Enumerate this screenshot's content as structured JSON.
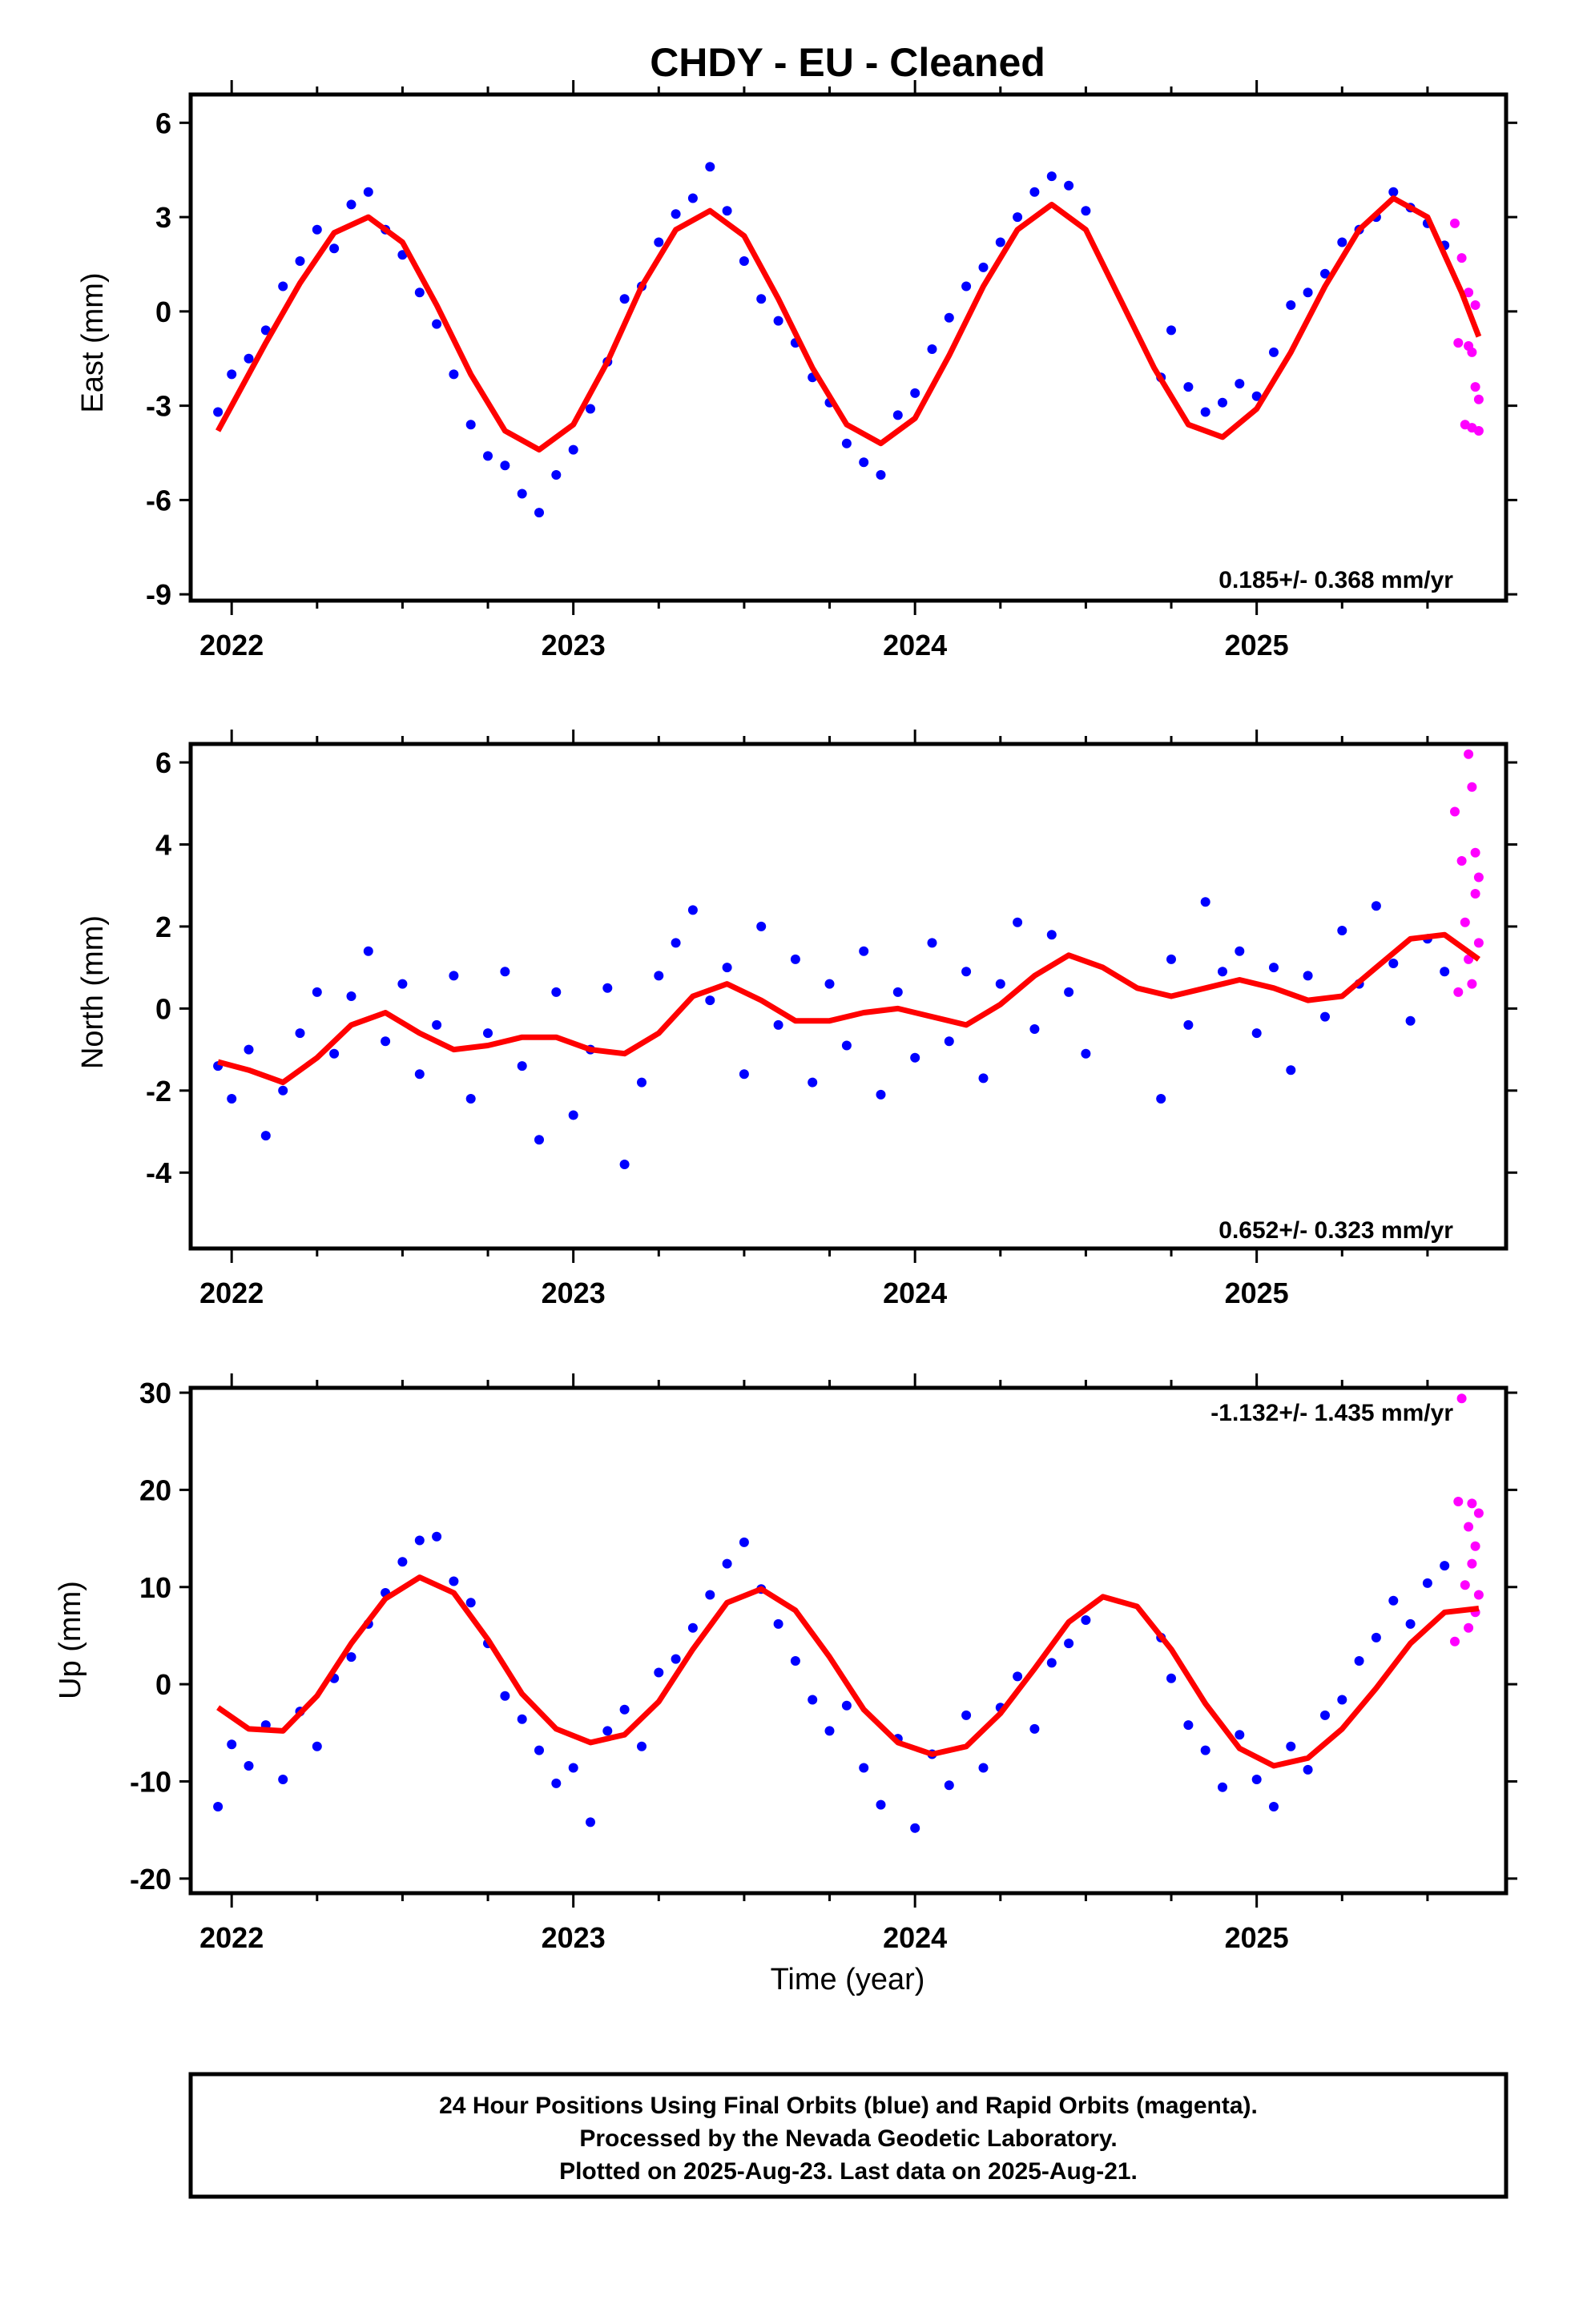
{
  "page": {
    "title": "CHDY  - EU - Cleaned",
    "xlabel": "Time (year)",
    "footer": [
      "24 Hour Positions Using Final Orbits (blue) and Rapid Orbits (magenta).",
      "Processed by the Nevada Geodetic Laboratory.",
      "Plotted on 2025-Aug-23. Last data on 2025-Aug-21."
    ],
    "colors": {
      "final": "#0000ff",
      "rapid": "#ff00ff",
      "model": "#ff0000",
      "axes": "#000000"
    }
  },
  "chart_data": [
    {
      "type": "scatter",
      "ylabel": "East (mm)",
      "rate": "0.185+/- 0.368 mm/yr",
      "xlim": [
        2021.88,
        2025.73
      ],
      "ylim": [
        -9.2,
        6.9
      ],
      "xticks": [
        2022,
        2023,
        2024,
        2025
      ],
      "yticks": [
        -9,
        -6,
        -3,
        0,
        3,
        6
      ],
      "series": [
        {
          "role": "final",
          "x": [
            2021.96,
            2022.0,
            2022.05,
            2022.1,
            2022.15,
            2022.2,
            2022.25,
            2022.3,
            2022.35,
            2022.4,
            2022.45,
            2022.5,
            2022.55,
            2022.6,
            2022.65,
            2022.7,
            2022.75,
            2022.8,
            2022.85,
            2022.9,
            2022.95,
            2023.0,
            2023.05,
            2023.1,
            2023.15,
            2023.2,
            2023.25,
            2023.3,
            2023.35,
            2023.4,
            2023.45,
            2023.5,
            2023.55,
            2023.6,
            2023.65,
            2023.7,
            2023.75,
            2023.8,
            2023.85,
            2023.9,
            2023.95,
            2024.0,
            2024.05,
            2024.1,
            2024.15,
            2024.2,
            2024.25,
            2024.3,
            2024.35,
            2024.4,
            2024.45,
            2024.5,
            2024.72,
            2024.75,
            2024.8,
            2024.85,
            2024.9,
            2024.95,
            2025.0,
            2025.05,
            2025.1,
            2025.15,
            2025.2,
            2025.25,
            2025.3,
            2025.35,
            2025.4,
            2025.45,
            2025.5,
            2025.55
          ],
          "y": [
            -3.2,
            -2.0,
            -1.5,
            -0.6,
            0.8,
            1.6,
            2.6,
            2.0,
            3.4,
            3.8,
            2.6,
            1.8,
            0.6,
            -0.4,
            -2.0,
            -3.6,
            -4.6,
            -4.9,
            -5.8,
            -6.4,
            -5.2,
            -4.4,
            -3.1,
            -1.6,
            0.4,
            0.8,
            2.2,
            3.1,
            3.6,
            4.6,
            3.2,
            1.6,
            0.4,
            -0.3,
            -1.0,
            -2.1,
            -2.9,
            -4.2,
            -4.8,
            -5.2,
            -3.3,
            -2.6,
            -1.2,
            -0.2,
            0.8,
            1.4,
            2.2,
            3.0,
            3.8,
            4.3,
            4.0,
            3.2,
            -2.1,
            -0.6,
            -2.4,
            -3.2,
            -2.9,
            -2.3,
            -2.7,
            -1.3,
            0.2,
            0.6,
            1.2,
            2.2,
            2.6,
            3.0,
            3.8,
            3.3,
            2.8,
            2.1
          ]
        },
        {
          "role": "rapid",
          "x": [
            2025.58,
            2025.59,
            2025.6,
            2025.61,
            2025.62,
            2025.62,
            2025.63,
            2025.63,
            2025.64,
            2025.64,
            2025.65,
            2025.65
          ],
          "y": [
            2.8,
            -1.0,
            1.7,
            -3.6,
            0.6,
            -1.1,
            -3.7,
            -1.3,
            0.2,
            -2.4,
            -3.8,
            -2.8
          ]
        },
        {
          "role": "model",
          "x": [
            2021.96,
            2022.0,
            2022.1,
            2022.2,
            2022.3,
            2022.4,
            2022.5,
            2022.6,
            2022.7,
            2022.8,
            2022.9,
            2023.0,
            2023.1,
            2023.2,
            2023.3,
            2023.4,
            2023.5,
            2023.6,
            2023.7,
            2023.8,
            2023.9,
            2024.0,
            2024.1,
            2024.2,
            2024.3,
            2024.4,
            2024.5,
            2024.6,
            2024.7,
            2024.8,
            2024.9,
            2025.0,
            2025.1,
            2025.2,
            2025.3,
            2025.4,
            2025.5,
            2025.6,
            2025.65
          ],
          "y": [
            -3.8,
            -3.0,
            -1.0,
            0.9,
            2.5,
            3.0,
            2.2,
            0.2,
            -2.0,
            -3.8,
            -4.4,
            -3.6,
            -1.6,
            0.8,
            2.6,
            3.2,
            2.4,
            0.4,
            -1.8,
            -3.6,
            -4.2,
            -3.4,
            -1.4,
            0.8,
            2.6,
            3.4,
            2.6,
            0.4,
            -1.8,
            -3.6,
            -4.0,
            -3.1,
            -1.3,
            0.8,
            2.6,
            3.6,
            3.0,
            0.6,
            -0.8
          ]
        }
      ]
    },
    {
      "type": "scatter",
      "ylabel": "North (mm)",
      "rate": "0.652+/- 0.323 mm/yr",
      "xlim": [
        2021.88,
        2025.73
      ],
      "ylim": [
        -5.85,
        6.45
      ],
      "xticks": [
        2022,
        2023,
        2024,
        2025
      ],
      "yticks": [
        -4,
        -2,
        0,
        2,
        4,
        6
      ],
      "series": [
        {
          "role": "final",
          "x": [
            2021.96,
            2022.0,
            2022.05,
            2022.1,
            2022.15,
            2022.2,
            2022.25,
            2022.3,
            2022.35,
            2022.4,
            2022.45,
            2022.5,
            2022.55,
            2022.6,
            2022.65,
            2022.7,
            2022.75,
            2022.8,
            2022.85,
            2022.9,
            2022.95,
            2023.0,
            2023.05,
            2023.1,
            2023.15,
            2023.2,
            2023.25,
            2023.3,
            2023.35,
            2023.4,
            2023.45,
            2023.5,
            2023.55,
            2023.6,
            2023.65,
            2023.7,
            2023.75,
            2023.8,
            2023.85,
            2023.9,
            2023.95,
            2024.0,
            2024.05,
            2024.1,
            2024.15,
            2024.2,
            2024.25,
            2024.3,
            2024.35,
            2024.4,
            2024.45,
            2024.5,
            2024.72,
            2024.75,
            2024.8,
            2024.85,
            2024.9,
            2024.95,
            2025.0,
            2025.05,
            2025.1,
            2025.15,
            2025.2,
            2025.25,
            2025.3,
            2025.35,
            2025.4,
            2025.45,
            2025.5,
            2025.55
          ],
          "y": [
            -1.4,
            -2.2,
            -1.0,
            -3.1,
            -2.0,
            -0.6,
            0.4,
            -1.1,
            0.3,
            1.4,
            -0.8,
            0.6,
            -1.6,
            -0.4,
            0.8,
            -2.2,
            -0.6,
            0.9,
            -1.4,
            -3.2,
            0.4,
            -2.6,
            -1.0,
            0.5,
            -3.8,
            -1.8,
            0.8,
            1.6,
            2.4,
            0.2,
            1.0,
            -1.6,
            2.0,
            -0.4,
            1.2,
            -1.8,
            0.6,
            -0.9,
            1.4,
            -2.1,
            0.4,
            -1.2,
            1.6,
            -0.8,
            0.9,
            -1.7,
            0.6,
            2.1,
            -0.5,
            1.8,
            0.4,
            -1.1,
            -2.2,
            1.2,
            -0.4,
            2.6,
            0.9,
            1.4,
            -0.6,
            1.0,
            -1.5,
            0.8,
            -0.2,
            1.9,
            0.6,
            2.5,
            1.1,
            -0.3,
            1.7,
            0.9
          ]
        },
        {
          "role": "rapid",
          "x": [
            2025.58,
            2025.59,
            2025.6,
            2025.61,
            2025.62,
            2025.62,
            2025.63,
            2025.63,
            2025.64,
            2025.64,
            2025.65,
            2025.65
          ],
          "y": [
            4.8,
            0.4,
            3.6,
            2.1,
            1.2,
            6.2,
            5.4,
            0.6,
            3.8,
            2.8,
            1.6,
            3.2
          ]
        },
        {
          "role": "model",
          "x": [
            2021.96,
            2022.05,
            2022.15,
            2022.25,
            2022.35,
            2022.45,
            2022.55,
            2022.65,
            2022.75,
            2022.85,
            2022.95,
            2023.05,
            2023.15,
            2023.25,
            2023.35,
            2023.45,
            2023.55,
            2023.65,
            2023.75,
            2023.85,
            2023.95,
            2024.05,
            2024.15,
            2024.25,
            2024.35,
            2024.45,
            2024.55,
            2024.65,
            2024.75,
            2024.85,
            2024.95,
            2025.05,
            2025.15,
            2025.25,
            2025.35,
            2025.45,
            2025.55,
            2025.65
          ],
          "y": [
            -1.3,
            -1.5,
            -1.8,
            -1.2,
            -0.4,
            -0.1,
            -0.6,
            -1.0,
            -0.9,
            -0.7,
            -0.7,
            -1.0,
            -1.1,
            -0.6,
            0.3,
            0.6,
            0.2,
            -0.3,
            -0.3,
            -0.1,
            0.0,
            -0.2,
            -0.4,
            0.1,
            0.8,
            1.3,
            1.0,
            0.5,
            0.3,
            0.5,
            0.7,
            0.5,
            0.2,
            0.3,
            1.0,
            1.7,
            1.8,
            1.2
          ]
        }
      ]
    },
    {
      "type": "scatter",
      "ylabel": "Up (mm)",
      "rate": "-1.132+/- 1.435 mm/yr",
      "xlim": [
        2021.88,
        2025.73
      ],
      "ylim": [
        -21.5,
        30.5
      ],
      "xticks": [
        2022,
        2023,
        2024,
        2025
      ],
      "yticks": [
        -20,
        -10,
        0,
        10,
        20,
        30
      ],
      "series": [
        {
          "role": "final",
          "x": [
            2021.96,
            2022.0,
            2022.05,
            2022.1,
            2022.15,
            2022.2,
            2022.25,
            2022.3,
            2022.35,
            2022.4,
            2022.45,
            2022.5,
            2022.55,
            2022.6,
            2022.65,
            2022.7,
            2022.75,
            2022.8,
            2022.85,
            2022.9,
            2022.95,
            2023.0,
            2023.05,
            2023.1,
            2023.15,
            2023.2,
            2023.25,
            2023.3,
            2023.35,
            2023.4,
            2023.45,
            2023.5,
            2023.55,
            2023.6,
            2023.65,
            2023.7,
            2023.75,
            2023.8,
            2023.85,
            2023.9,
            2023.95,
            2024.0,
            2024.05,
            2024.1,
            2024.15,
            2024.2,
            2024.25,
            2024.3,
            2024.35,
            2024.4,
            2024.45,
            2024.5,
            2024.72,
            2024.75,
            2024.8,
            2024.85,
            2024.9,
            2024.95,
            2025.0,
            2025.05,
            2025.1,
            2025.15,
            2025.2,
            2025.25,
            2025.3,
            2025.35,
            2025.4,
            2025.45,
            2025.5,
            2025.55
          ],
          "y": [
            -12.6,
            -6.2,
            -8.4,
            -4.2,
            -9.8,
            -2.8,
            -6.4,
            0.6,
            2.8,
            6.2,
            9.4,
            12.6,
            14.8,
            15.2,
            10.6,
            8.4,
            4.2,
            -1.2,
            -3.6,
            -6.8,
            -10.2,
            -8.6,
            -14.2,
            -4.8,
            -2.6,
            -6.4,
            1.2,
            2.6,
            5.8,
            9.2,
            12.4,
            14.6,
            9.8,
            6.2,
            2.4,
            -1.6,
            -4.8,
            -2.2,
            -8.6,
            -12.4,
            -5.6,
            -14.8,
            -7.2,
            -10.4,
            -3.2,
            -8.6,
            -2.4,
            0.8,
            -4.6,
            2.2,
            4.2,
            6.6,
            4.8,
            0.6,
            -4.2,
            -6.8,
            -10.6,
            -5.2,
            -9.8,
            -12.6,
            -6.4,
            -8.8,
            -3.2,
            -1.6,
            2.4,
            4.8,
            8.6,
            6.2,
            10.4,
            12.2
          ]
        },
        {
          "role": "rapid",
          "x": [
            2025.58,
            2025.59,
            2025.6,
            2025.61,
            2025.62,
            2025.62,
            2025.63,
            2025.63,
            2025.64,
            2025.64,
            2025.65,
            2025.65
          ],
          "y": [
            4.4,
            18.8,
            29.4,
            10.2,
            16.2,
            5.8,
            12.4,
            18.6,
            7.4,
            14.2,
            17.6,
            9.2
          ]
        },
        {
          "role": "model",
          "x": [
            2021.96,
            2022.05,
            2022.15,
            2022.25,
            2022.35,
            2022.45,
            2022.55,
            2022.65,
            2022.75,
            2022.85,
            2022.95,
            2023.05,
            2023.15,
            2023.25,
            2023.35,
            2023.45,
            2023.55,
            2023.65,
            2023.75,
            2023.85,
            2023.95,
            2024.05,
            2024.15,
            2024.25,
            2024.35,
            2024.45,
            2024.55,
            2024.65,
            2024.75,
            2024.85,
            2024.95,
            2025.05,
            2025.15,
            2025.25,
            2025.35,
            2025.45,
            2025.55,
            2025.65
          ],
          "y": [
            -2.4,
            -4.6,
            -4.8,
            -1.2,
            4.2,
            8.8,
            11.0,
            9.4,
            4.6,
            -1.0,
            -4.6,
            -6.0,
            -5.2,
            -1.8,
            3.6,
            8.4,
            9.8,
            7.6,
            2.8,
            -2.6,
            -6.0,
            -7.2,
            -6.4,
            -3.0,
            1.6,
            6.4,
            9.0,
            8.0,
            3.6,
            -2.0,
            -6.6,
            -8.4,
            -7.6,
            -4.6,
            -0.4,
            4.2,
            7.4,
            7.8
          ]
        }
      ]
    }
  ]
}
